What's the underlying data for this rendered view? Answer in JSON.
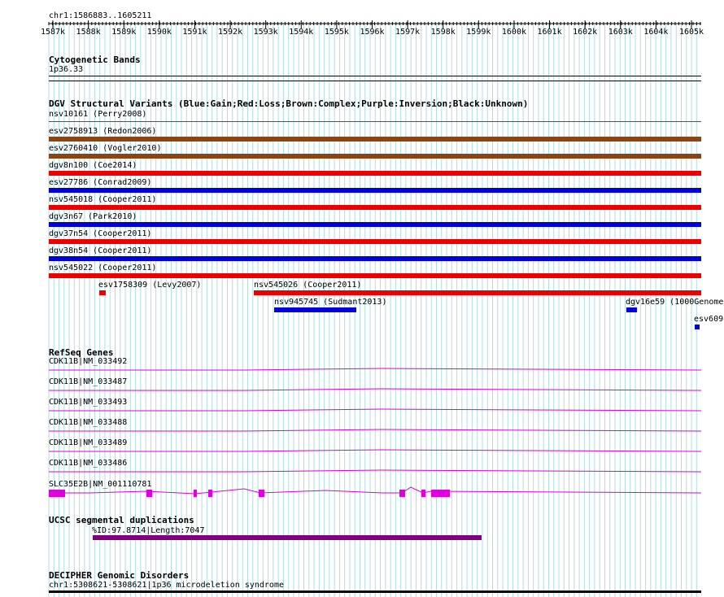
{
  "region": "chr1:1586883..1605211",
  "ruler": {
    "ticks": [
      "1587k",
      "1588k",
      "1589k",
      "1590k",
      "1591k",
      "1592k",
      "1593k",
      "1594k",
      "1595k",
      "1596k",
      "1597k",
      "1598k",
      "1599k",
      "1600k",
      "1601k",
      "1602k",
      "1603k",
      "1604k",
      "1605k"
    ]
  },
  "tracks": {
    "cyto": {
      "title": "Cytogenetic Bands",
      "band": "1p36.33"
    },
    "dgv": {
      "title": "DGV Structural Variants (Blue:Gain;Red:Loss;Brown:Complex;Purple:Inversion;Black:Unknown)",
      "colors": {
        "gain": "#0000dd",
        "loss": "#ee0000",
        "complex": "#8b4513",
        "unknown": "#000000"
      },
      "full": [
        {
          "label": "nsv10161 (Perry2008)",
          "type": "complex"
        },
        {
          "label": "esv2758913 (Redon2006)",
          "type": "complex"
        },
        {
          "label": "esv2760410 (Vogler2010)",
          "type": "complex"
        },
        {
          "label": "dgv8n100 (Coe2014)",
          "type": "loss"
        },
        {
          "label": "esv27786 (Conrad2009)",
          "type": "gain"
        },
        {
          "label": "nsv545018 (Cooper2011)",
          "type": "loss"
        },
        {
          "label": "dgv3n67 (Park2010)",
          "type": "gain"
        },
        {
          "label": "dgv37n54 (Cooper2011)",
          "type": "loss"
        },
        {
          "label": "dgv38n54 (Cooper2011)",
          "type": "gain"
        },
        {
          "label": "nsv545022 (Cooper2011)",
          "type": "loss"
        }
      ],
      "partial": [
        {
          "label": "esv1758309 (Levy2007)",
          "type": "loss"
        },
        {
          "label": "nsv545026 (Cooper2011)",
          "type": "loss"
        },
        {
          "label": "nsv945745 (Sudmant2013)",
          "type": "gain"
        },
        {
          "label": "dgv16e59 (1000Genome",
          "type": "gain"
        },
        {
          "label": "esv609",
          "type": "gain"
        }
      ]
    },
    "refseq": {
      "title": "RefSeq Genes",
      "color": "#dd00dd",
      "genes": [
        "CDK11B|NM_033492",
        "CDK11B|NM_033487",
        "CDK11B|NM_033493",
        "CDK11B|NM_033488",
        "CDK11B|NM_033489",
        "CDK11B|NM_033486"
      ],
      "slc": "SLC35E2B|NM_001110781"
    },
    "segdup": {
      "title": "UCSC segmental duplications",
      "label": "%ID:97.8714|Length:7047",
      "color": "#800080"
    },
    "decipher": {
      "title": "DECIPHER Genomic Disorders",
      "label": "chr1:5308621-5308621|1p36 microdeletion syndrome"
    }
  }
}
